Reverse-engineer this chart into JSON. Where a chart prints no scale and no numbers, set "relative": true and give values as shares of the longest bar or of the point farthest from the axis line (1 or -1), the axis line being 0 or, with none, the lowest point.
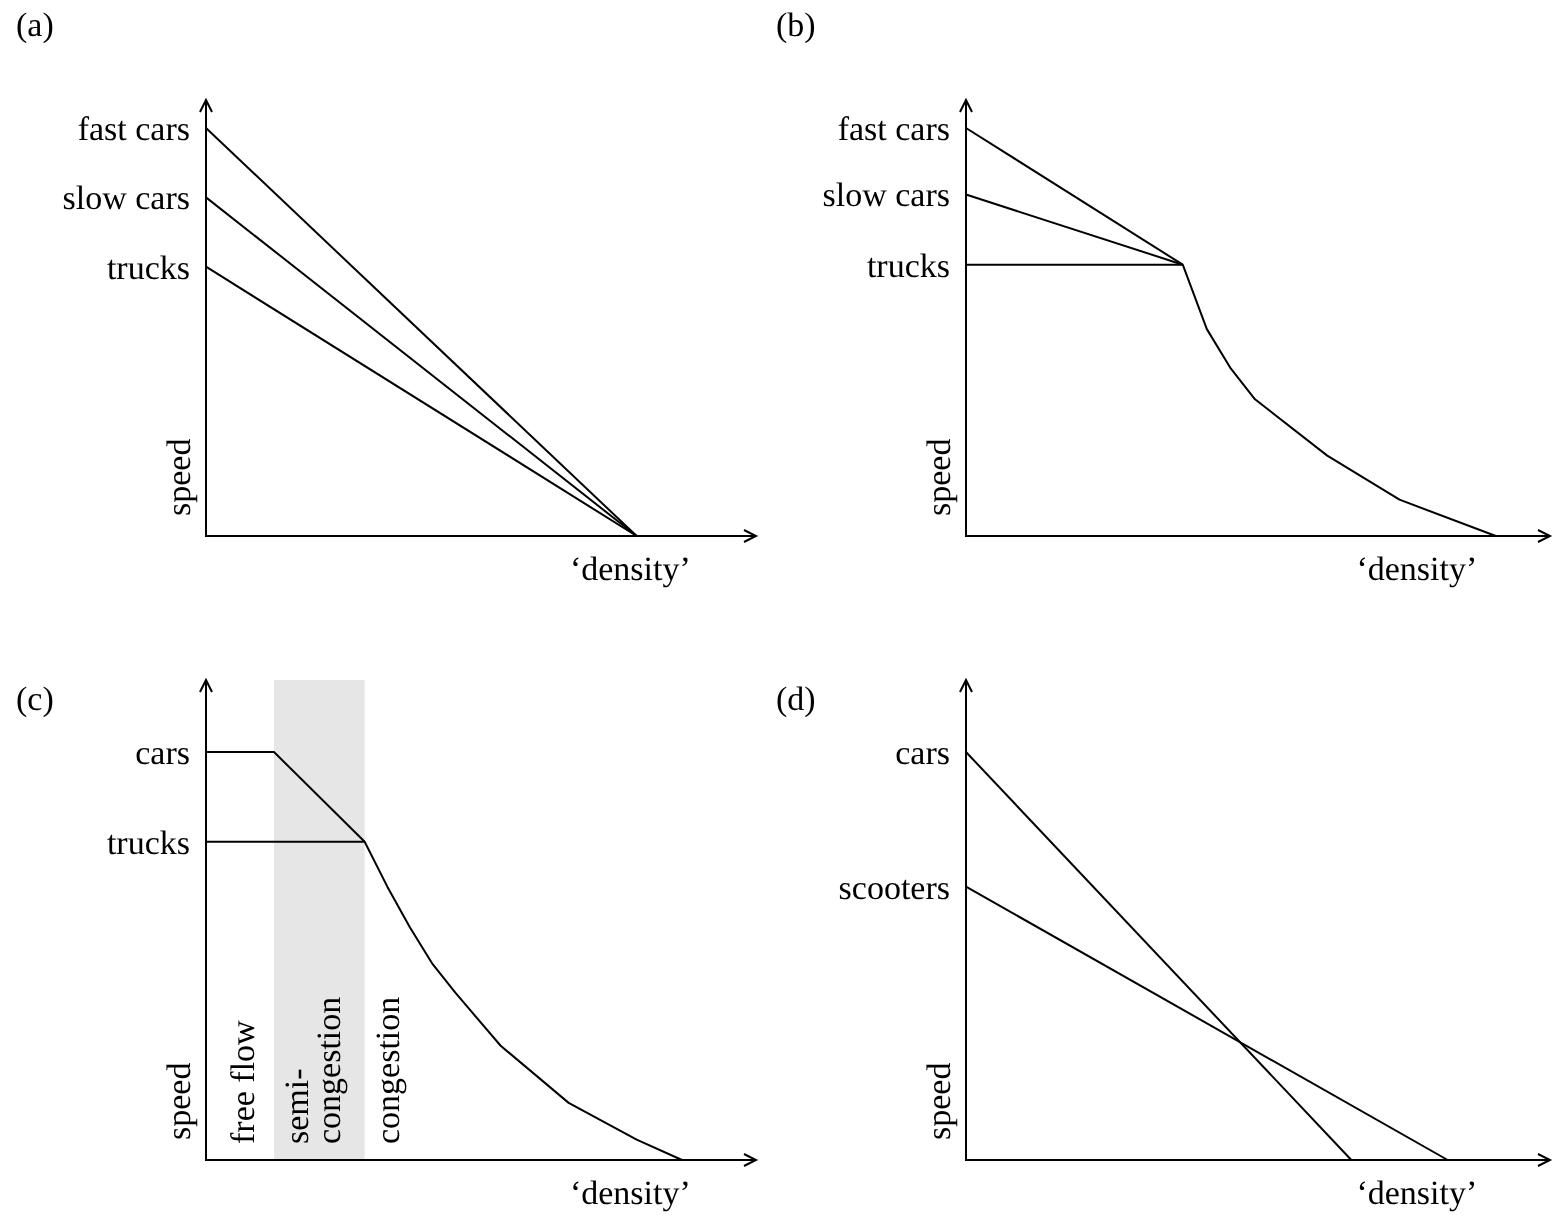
{
  "chart_data": [
    {
      "type": "line",
      "title": "(a)",
      "xlabel": "‘density’",
      "ylabel": "speed",
      "relative": true,
      "categories": [
        null,
        null,
        null,
        null,
        null,
        null,
        null,
        null,
        null,
        null,
        null,
        null,
        null,
        null,
        null,
        null,
        null,
        null,
        null,
        null,
        null,
        null,
        null,
        null
      ],
      "series": [
        {
          "name": "fast cars",
          "color": "#000000",
          "values": [
            1,
            null,
            null,
            null,
            null,
            null,
            null,
            null,
            null,
            null,
            null,
            null,
            null,
            null,
            null,
            null,
            null,
            null,
            null,
            0,
            null,
            null,
            null,
            null
          ]
        },
        {
          "name": "slow cars",
          "color": "#000000",
          "values": [
            0.83,
            null,
            null,
            null,
            null,
            null,
            null,
            null,
            null,
            null,
            null,
            null,
            null,
            null,
            null,
            null,
            null,
            null,
            null,
            0,
            null,
            null,
            null,
            null
          ]
        },
        {
          "name": "trucks",
          "color": "#000000",
          "values": [
            0.66,
            null,
            null,
            null,
            null,
            null,
            null,
            null,
            null,
            null,
            null,
            null,
            null,
            null,
            null,
            null,
            null,
            null,
            null,
            0,
            null,
            null,
            null,
            null
          ]
        }
      ]
    },
    {
      "type": "line",
      "title": "(b)",
      "xlabel": "‘density’",
      "ylabel": "speed",
      "relative": true,
      "categories": [
        null,
        null,
        null,
        null,
        null,
        null,
        null,
        null,
        null,
        null,
        null,
        null,
        null,
        null,
        null,
        null,
        null,
        null,
        null,
        null,
        null,
        null,
        null,
        null
      ],
      "series": [
        {
          "name": "fast cars",
          "color": "#000000",
          "values": [
            1,
            null,
            null,
            null,
            null,
            null,
            null,
            null,
            null,
            0.665,
            null,
            null,
            null,
            null,
            null,
            null,
            null,
            null,
            null,
            null,
            null,
            null,
            null,
            null
          ]
        },
        {
          "name": "slow cars",
          "color": "#000000",
          "values": [
            0.837,
            null,
            null,
            null,
            null,
            null,
            null,
            null,
            null,
            0.665,
            null,
            null,
            null,
            null,
            null,
            null,
            null,
            null,
            null,
            null,
            null,
            null,
            null,
            null
          ]
        },
        {
          "name": "trucks",
          "color": "#000000",
          "values": [
            0.665,
            null,
            null,
            null,
            null,
            null,
            null,
            null,
            null,
            0.665,
            0.507,
            0.41,
            0.335,
            null,
            null,
            0.197,
            null,
            null,
            0.089,
            null,
            null,
            null,
            0,
            null
          ]
        }
      ]
    },
    {
      "type": "line",
      "title": "(c)",
      "xlabel": "‘density’",
      "ylabel": "speed",
      "relative": true,
      "categories": [
        null,
        null,
        null,
        null,
        null,
        null,
        null,
        null,
        null,
        null,
        null,
        null,
        null,
        null,
        null,
        null,
        null,
        null,
        null,
        null,
        null,
        null,
        null,
        null
      ],
      "series": [
        {
          "name": "cars",
          "color": "#000000",
          "values": [
            1,
            null,
            null,
            1,
            null,
            null,
            null,
            0.78,
            null,
            null,
            null,
            null,
            null,
            null,
            null,
            null,
            null,
            null,
            null,
            null,
            null,
            null,
            null,
            null
          ]
        },
        {
          "name": "trucks",
          "color": "#000000",
          "values": [
            0.78,
            null,
            null,
            null,
            null,
            null,
            null,
            0.78,
            0.67,
            0.57,
            0.48,
            0.41,
            null,
            0.28,
            null,
            null,
            0.14,
            null,
            null,
            0.05,
            null,
            0,
            null,
            null
          ]
        }
      ],
      "annotations": [
        "free flow",
        "semi-congestion",
        "congestion"
      ]
    },
    {
      "type": "line",
      "title": "(d)",
      "xlabel": "‘density’",
      "ylabel": "speed",
      "relative": true,
      "categories": [
        null,
        null,
        null,
        null,
        null,
        null,
        null,
        null,
        null,
        null,
        null,
        null,
        null,
        null,
        null,
        null,
        null,
        null,
        null,
        null,
        null,
        null,
        null,
        null
      ],
      "series": [
        {
          "name": "cars",
          "color": "#000000",
          "values": [
            1,
            null,
            null,
            null,
            null,
            null,
            null,
            null,
            null,
            null,
            null,
            null,
            null,
            null,
            null,
            null,
            0,
            null,
            null,
            null,
            null,
            null,
            null,
            null
          ]
        },
        {
          "name": "scooters",
          "color": "#000000",
          "values": [
            0.67,
            null,
            null,
            null,
            null,
            null,
            null,
            null,
            null,
            null,
            null,
            null,
            null,
            null,
            null,
            null,
            null,
            null,
            null,
            null,
            0,
            null,
            null,
            null
          ]
        }
      ]
    }
  ]
}
